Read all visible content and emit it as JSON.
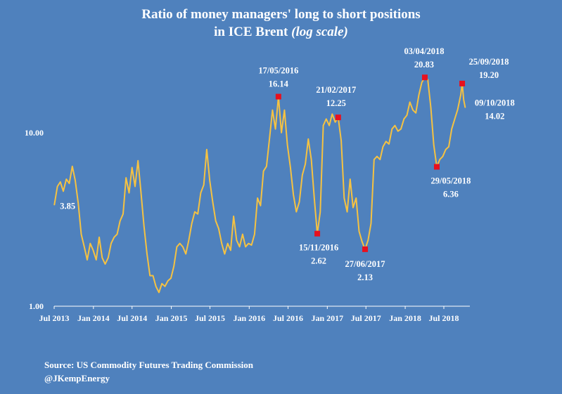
{
  "chart_data": {
    "type": "line",
    "title_line1": "Ratio of money managers' long to short positions",
    "title_line2_prefix": "in  ICE Brent",
    "title_line2_italic": "(log scale)",
    "y_scale": "log",
    "ylim": [
      1,
      24
    ],
    "y_ticks": [
      {
        "value": 1,
        "label": "1.00"
      },
      {
        "value": 10,
        "label": "10.00"
      }
    ],
    "x_ticks": [
      {
        "date": "2013-07-01",
        "label": "Jul 2013"
      },
      {
        "date": "2014-01-01",
        "label": "Jan 2014"
      },
      {
        "date": "2014-07-01",
        "label": "Jul 2014"
      },
      {
        "date": "2015-01-01",
        "label": "Jan 2015"
      },
      {
        "date": "2015-07-01",
        "label": "Jul 2015"
      },
      {
        "date": "2016-01-01",
        "label": "Jan 2016"
      },
      {
        "date": "2016-07-01",
        "label": "Jul 2016"
      },
      {
        "date": "2017-01-01",
        "label": "Jan 2017"
      },
      {
        "date": "2017-07-01",
        "label": "Jul 2017"
      },
      {
        "date": "2018-01-01",
        "label": "Jan 2018"
      },
      {
        "date": "2018-07-01",
        "label": "Jul 2018"
      }
    ],
    "xlim": [
      "2013-07-01",
      "2018-10-31"
    ],
    "grid": false,
    "legend": "none",
    "line_color": "#f5c242",
    "marker_color": "#e8101e",
    "series": [
      {
        "points": [
          [
            "2013-07-02",
            3.85
          ],
          [
            "2013-07-16",
            4.9
          ],
          [
            "2013-07-30",
            5.2
          ],
          [
            "2013-08-13",
            4.6
          ],
          [
            "2013-08-27",
            5.4
          ],
          [
            "2013-09-10",
            5.1
          ],
          [
            "2013-09-24",
            6.4
          ],
          [
            "2013-10-08",
            5.3
          ],
          [
            "2013-10-22",
            3.9
          ],
          [
            "2013-11-05",
            2.6
          ],
          [
            "2013-11-19",
            2.2
          ],
          [
            "2013-12-03",
            1.85
          ],
          [
            "2013-12-17",
            2.3
          ],
          [
            "2013-12-31",
            2.1
          ],
          [
            "2014-01-14",
            1.85
          ],
          [
            "2014-01-28",
            2.5
          ],
          [
            "2014-02-11",
            1.9
          ],
          [
            "2014-02-25",
            1.75
          ],
          [
            "2014-03-11",
            1.9
          ],
          [
            "2014-03-25",
            2.3
          ],
          [
            "2014-04-08",
            2.5
          ],
          [
            "2014-04-22",
            2.6
          ],
          [
            "2014-05-06",
            3.1
          ],
          [
            "2014-05-20",
            3.4
          ],
          [
            "2014-06-03",
            5.5
          ],
          [
            "2014-06-17",
            4.5
          ],
          [
            "2014-07-01",
            6.3
          ],
          [
            "2014-07-15",
            4.9
          ],
          [
            "2014-07-29",
            6.9
          ],
          [
            "2014-08-12",
            4.5
          ],
          [
            "2014-08-26",
            2.9
          ],
          [
            "2014-09-09",
            2.0
          ],
          [
            "2014-09-23",
            1.5
          ],
          [
            "2014-10-07",
            1.5
          ],
          [
            "2014-10-21",
            1.3
          ],
          [
            "2014-11-04",
            1.2
          ],
          [
            "2014-11-18",
            1.35
          ],
          [
            "2014-12-02",
            1.3
          ],
          [
            "2014-12-16",
            1.4
          ],
          [
            "2014-12-30",
            1.45
          ],
          [
            "2015-01-13",
            1.7
          ],
          [
            "2015-01-27",
            2.2
          ],
          [
            "2015-02-10",
            2.3
          ],
          [
            "2015-02-24",
            2.2
          ],
          [
            "2015-03-10",
            2.0
          ],
          [
            "2015-03-24",
            2.4
          ],
          [
            "2015-04-07",
            3.0
          ],
          [
            "2015-04-21",
            3.5
          ],
          [
            "2015-05-05",
            3.4
          ],
          [
            "2015-05-19",
            4.5
          ],
          [
            "2015-06-02",
            5.0
          ],
          [
            "2015-06-16",
            8.0
          ],
          [
            "2015-06-30",
            5.3
          ],
          [
            "2015-07-14",
            4.0
          ],
          [
            "2015-07-28",
            3.1
          ],
          [
            "2015-08-11",
            2.8
          ],
          [
            "2015-08-25",
            2.3
          ],
          [
            "2015-09-08",
            2.0
          ],
          [
            "2015-09-22",
            2.3
          ],
          [
            "2015-10-06",
            2.1
          ],
          [
            "2015-10-20",
            3.3
          ],
          [
            "2015-11-03",
            2.4
          ],
          [
            "2015-11-17",
            2.2
          ],
          [
            "2015-12-01",
            2.6
          ],
          [
            "2015-12-15",
            2.2
          ],
          [
            "2015-12-29",
            2.3
          ],
          [
            "2016-01-12",
            2.25
          ],
          [
            "2016-01-26",
            2.6
          ],
          [
            "2016-02-09",
            4.2
          ],
          [
            "2016-02-23",
            3.8
          ],
          [
            "2016-03-08",
            6.0
          ],
          [
            "2016-03-22",
            6.4
          ],
          [
            "2016-04-05",
            9.2
          ],
          [
            "2016-04-19",
            13.5
          ],
          [
            "2016-05-03",
            10.5
          ],
          [
            "2016-05-17",
            16.14
          ],
          [
            "2016-05-31",
            10.0
          ],
          [
            "2016-06-14",
            13.5
          ],
          [
            "2016-06-28",
            8.5
          ],
          [
            "2016-07-12",
            6.3
          ],
          [
            "2016-07-26",
            4.4
          ],
          [
            "2016-08-09",
            3.5
          ],
          [
            "2016-08-23",
            4.0
          ],
          [
            "2016-09-06",
            5.7
          ],
          [
            "2016-09-20",
            6.6
          ],
          [
            "2016-10-04",
            9.2
          ],
          [
            "2016-10-18",
            7.0
          ],
          [
            "2016-11-01",
            4.2
          ],
          [
            "2016-11-15",
            2.62
          ],
          [
            "2016-11-29",
            3.5
          ],
          [
            "2016-12-13",
            11.0
          ],
          [
            "2016-12-27",
            12.0
          ],
          [
            "2017-01-10",
            11.0
          ],
          [
            "2017-01-24",
            12.8
          ],
          [
            "2017-02-07",
            11.5
          ],
          [
            "2017-02-21",
            12.25
          ],
          [
            "2017-03-07",
            9.0
          ],
          [
            "2017-03-21",
            4.2
          ],
          [
            "2017-04-04",
            3.5
          ],
          [
            "2017-04-18",
            5.4
          ],
          [
            "2017-05-02",
            3.7
          ],
          [
            "2017-05-16",
            4.2
          ],
          [
            "2017-05-30",
            2.7
          ],
          [
            "2017-06-13",
            2.35
          ],
          [
            "2017-06-27",
            2.13
          ],
          [
            "2017-07-11",
            2.4
          ],
          [
            "2017-07-25",
            3.0
          ],
          [
            "2017-08-08",
            7.0
          ],
          [
            "2017-08-22",
            7.3
          ],
          [
            "2017-09-05",
            7.0
          ],
          [
            "2017-09-19",
            8.3
          ],
          [
            "2017-10-03",
            8.9
          ],
          [
            "2017-10-17",
            8.6
          ],
          [
            "2017-10-31",
            10.5
          ],
          [
            "2017-11-14",
            11.0
          ],
          [
            "2017-11-28",
            10.2
          ],
          [
            "2017-12-12",
            10.5
          ],
          [
            "2017-12-26",
            12.0
          ],
          [
            "2018-01-09",
            12.6
          ],
          [
            "2018-01-23",
            15.0
          ],
          [
            "2018-02-06",
            13.5
          ],
          [
            "2018-02-20",
            13.0
          ],
          [
            "2018-03-06",
            16.5
          ],
          [
            "2018-03-20",
            19.5
          ],
          [
            "2018-04-03",
            20.83
          ],
          [
            "2018-04-17",
            20.2
          ],
          [
            "2018-05-01",
            14.0
          ],
          [
            "2018-05-15",
            8.5
          ],
          [
            "2018-05-29",
            6.36
          ],
          [
            "2018-06-12",
            7.0
          ],
          [
            "2018-06-26",
            7.3
          ],
          [
            "2018-07-10",
            8.0
          ],
          [
            "2018-07-24",
            8.3
          ],
          [
            "2018-08-07",
            10.5
          ],
          [
            "2018-08-21",
            12.0
          ],
          [
            "2018-09-04",
            13.6
          ],
          [
            "2018-09-18",
            16.5
          ],
          [
            "2018-09-25",
            19.2
          ],
          [
            "2018-10-02",
            15.5
          ],
          [
            "2018-10-09",
            14.02
          ]
        ]
      }
    ],
    "annotations": [
      {
        "date": "2013-07-02",
        "value": 3.85,
        "date_label": "",
        "value_label": "3.85",
        "marker": false
      },
      {
        "date": "2016-05-17",
        "value": 16.14,
        "date_label": "17/05/2016",
        "value_label": "16.14",
        "marker": true
      },
      {
        "date": "2016-11-15",
        "value": 2.62,
        "date_label": "15/11/2016",
        "value_label": "2.62",
        "marker": true
      },
      {
        "date": "2017-02-21",
        "value": 12.25,
        "date_label": "21/02/2017",
        "value_label": "12.25",
        "marker": true
      },
      {
        "date": "2017-06-27",
        "value": 2.13,
        "date_label": "27/06/2017",
        "value_label": "2.13",
        "marker": true
      },
      {
        "date": "2018-04-03",
        "value": 20.83,
        "date_label": "03/04/2018",
        "value_label": "20.83",
        "marker": true
      },
      {
        "date": "2018-05-29",
        "value": 6.36,
        "date_label": "29/05/2018",
        "value_label": "6.36",
        "marker": true
      },
      {
        "date": "2018-09-25",
        "value": 19.2,
        "date_label": "25/09/2018",
        "value_label": "19.20",
        "marker": true
      },
      {
        "date": "2018-10-09",
        "value": 14.02,
        "date_label": "09/10/2018",
        "value_label": "14.02",
        "marker": false
      }
    ]
  },
  "footer": {
    "source": "Source: US Commodity Futures Trading Commission",
    "handle": "@JKempEnergy"
  }
}
